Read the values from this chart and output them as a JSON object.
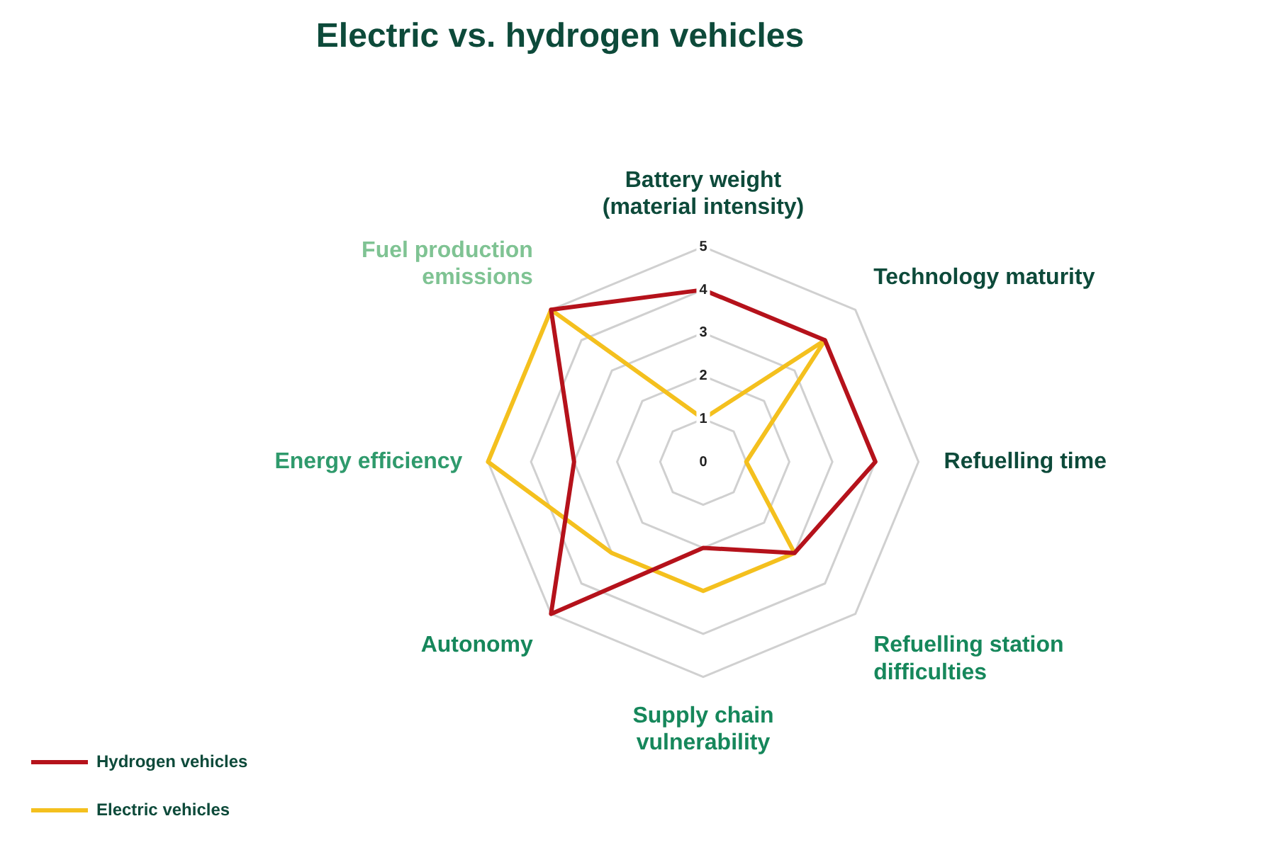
{
  "chart_data": {
    "type": "radar",
    "title": "Electric vs. hydrogen vehicles",
    "categories": [
      "Battery weight (material intensity)",
      "Technology maturity",
      "Refuelling time",
      "Refuelling station difficulties",
      "Supply chain vulnerability",
      "Autonomy",
      "Energy efficiency",
      "Fuel production emissions"
    ],
    "series": [
      {
        "name": "Hydrogen vehicles",
        "color": "#b5121b",
        "values": [
          4,
          4,
          4,
          3,
          2,
          5,
          3,
          5
        ]
      },
      {
        "name": "Electric vehicles",
        "color": "#f4c01e",
        "values": [
          1,
          4,
          1,
          3,
          3,
          3,
          5,
          5
        ]
      }
    ],
    "ylim": [
      0,
      5
    ],
    "yticks": [
      0,
      1,
      2,
      3,
      4,
      5
    ],
    "grid": true,
    "legend": "bottom left",
    "marker": "none",
    "line_style": "solid"
  }
}
